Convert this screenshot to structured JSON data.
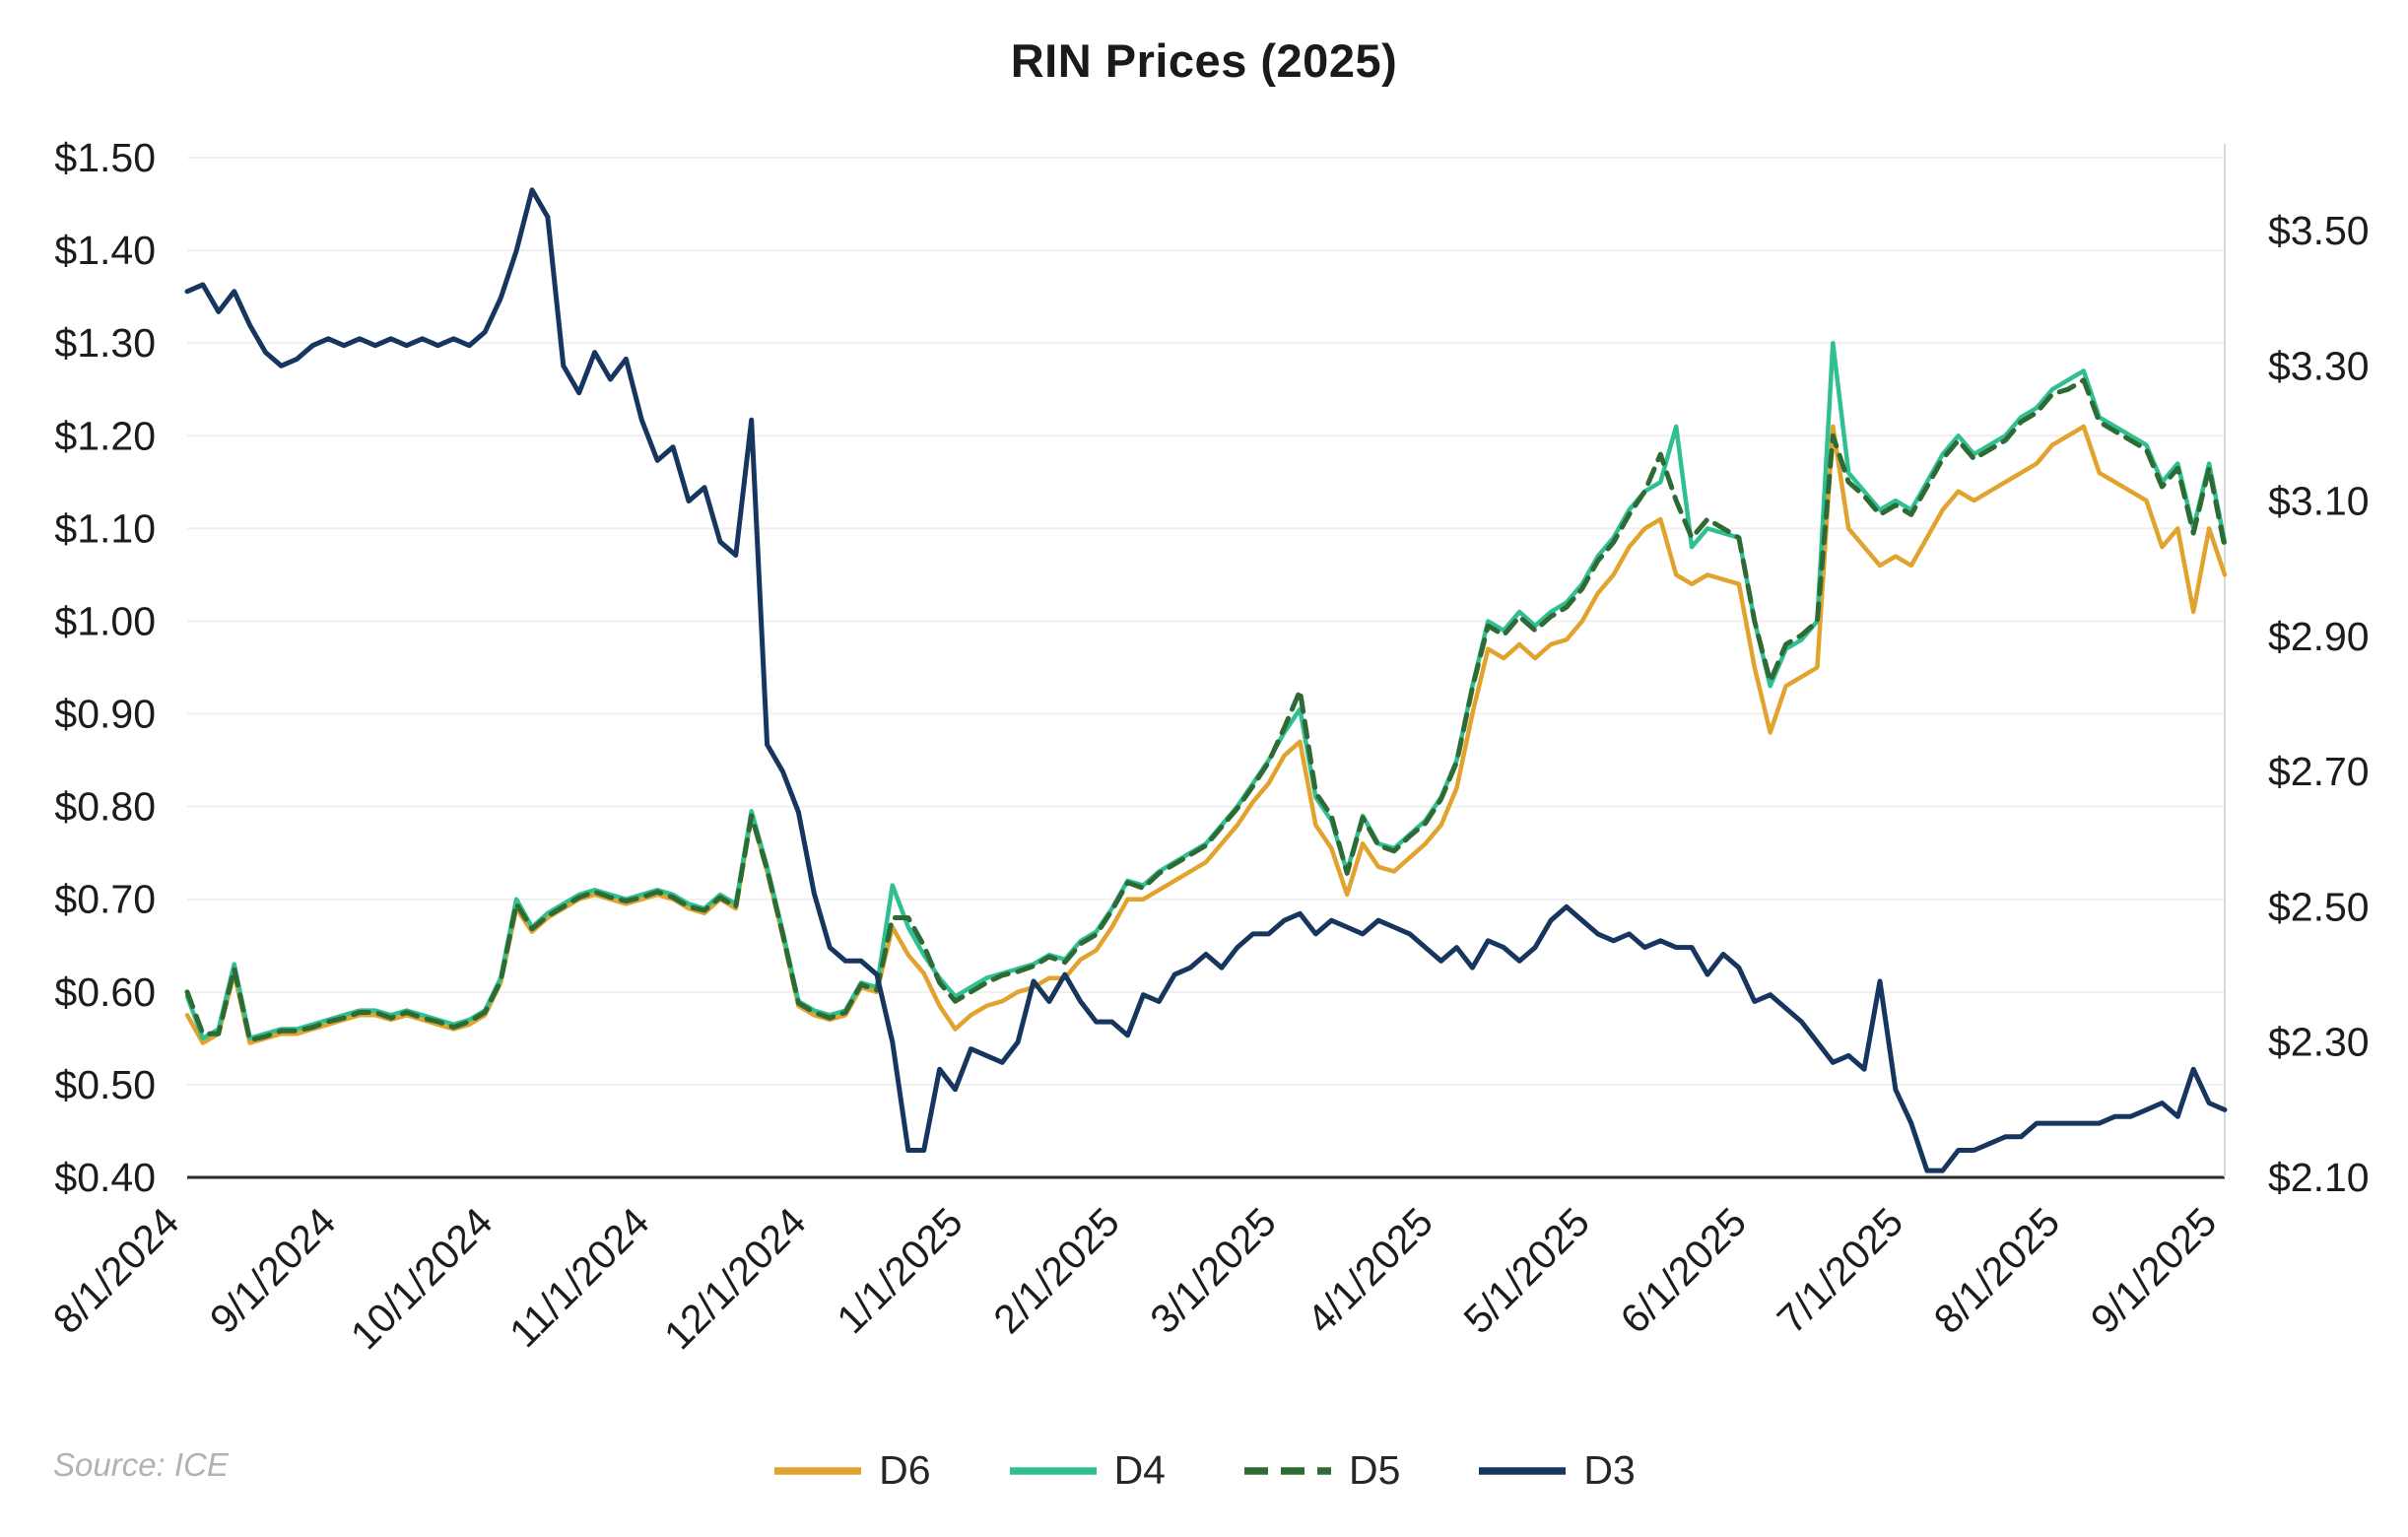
{
  "chart_data": {
    "type": "line",
    "title": "RIN Prices (2025)",
    "source": "Source: ICE",
    "legend_position": "bottom",
    "grid": true,
    "x_unit": "months since 8/1/2024",
    "x_start": 0,
    "x_step": 0.1,
    "x_axis": {
      "min": 0,
      "max": 13,
      "tick_positions": [
        0,
        1,
        2,
        3,
        4,
        5,
        6,
        7,
        8,
        9,
        10,
        11,
        12,
        13
      ],
      "tick_labels": [
        "8/1/2024",
        "9/1/2024",
        "10/1/2024",
        "11/1/2024",
        "12/1/2024",
        "1/1/2025",
        "2/1/2025",
        "3/1/2025",
        "4/1/2025",
        "5/1/2025",
        "6/1/2025",
        "7/1/2025",
        "8/1/2025",
        "9/1/2025"
      ]
    },
    "left_axis": {
      "min": 0.4,
      "max": 1.5,
      "tick_values": [
        0.4,
        0.5,
        0.6,
        0.7,
        0.8,
        0.9,
        1.0,
        1.1,
        1.2,
        1.3,
        1.4,
        1.5
      ],
      "tick_labels": [
        "$0.40",
        "$0.50",
        "$0.60",
        "$0.70",
        "$0.80",
        "$0.90",
        "$1.00",
        "$1.10",
        "$1.20",
        "$1.30",
        "$1.40",
        "$1.50"
      ]
    },
    "right_axis": {
      "min": 2.1,
      "max": 3.5,
      "tick_values": [
        2.1,
        2.3,
        2.5,
        2.7,
        2.9,
        3.1,
        3.3,
        3.5
      ],
      "tick_labels": [
        "$2.10",
        "$2.30",
        "$2.50",
        "$2.70",
        "$2.90",
        "$3.10",
        "$3.30",
        "$3.50"
      ]
    },
    "series": [
      {
        "name": "D6",
        "axis": "left",
        "color": "#E1A32E",
        "dash": null,
        "width": 4.5,
        "values": [
          0.575,
          0.545,
          0.555,
          0.62,
          0.545,
          0.55,
          0.555,
          0.555,
          0.56,
          0.565,
          0.57,
          0.575,
          0.575,
          0.57,
          0.575,
          0.57,
          0.565,
          0.56,
          0.565,
          0.575,
          0.61,
          0.69,
          0.665,
          0.68,
          0.69,
          0.7,
          0.705,
          0.7,
          0.695,
          0.7,
          0.705,
          0.7,
          0.69,
          0.685,
          0.7,
          0.69,
          0.79,
          0.73,
          0.66,
          0.585,
          0.575,
          0.57,
          0.575,
          0.605,
          0.6,
          0.67,
          0.64,
          0.62,
          0.585,
          0.56,
          0.575,
          0.585,
          0.59,
          0.6,
          0.605,
          0.615,
          0.615,
          0.635,
          0.645,
          0.67,
          0.7,
          0.7,
          0.71,
          0.72,
          0.73,
          0.74,
          0.76,
          0.78,
          0.805,
          0.825,
          0.855,
          0.87,
          0.78,
          0.755,
          0.705,
          0.76,
          0.735,
          0.73,
          0.745,
          0.76,
          0.78,
          0.82,
          0.9,
          0.97,
          0.96,
          0.975,
          0.96,
          0.975,
          0.98,
          1.0,
          1.03,
          1.05,
          1.08,
          1.1,
          1.11,
          1.05,
          1.04,
          1.05,
          1.045,
          1.04,
          0.95,
          0.88,
          0.93,
          0.94,
          0.95,
          1.21,
          1.1,
          1.08,
          1.06,
          1.07,
          1.06,
          1.09,
          1.12,
          1.14,
          1.13,
          1.14,
          1.15,
          1.16,
          1.17,
          1.19,
          1.2,
          1.21,
          1.16,
          1.15,
          1.14,
          1.13,
          1.08,
          1.1,
          1.01,
          1.1,
          1.05
        ]
      },
      {
        "name": "D4",
        "axis": "left",
        "color": "#2FBF91",
        "dash": null,
        "width": 4.5,
        "values": [
          0.595,
          0.55,
          0.56,
          0.63,
          0.55,
          0.555,
          0.56,
          0.56,
          0.565,
          0.57,
          0.575,
          0.58,
          0.58,
          0.575,
          0.58,
          0.575,
          0.57,
          0.565,
          0.57,
          0.58,
          0.615,
          0.7,
          0.67,
          0.685,
          0.695,
          0.705,
          0.71,
          0.705,
          0.7,
          0.705,
          0.71,
          0.705,
          0.695,
          0.69,
          0.705,
          0.695,
          0.795,
          0.735,
          0.665,
          0.59,
          0.58,
          0.575,
          0.58,
          0.61,
          0.605,
          0.715,
          0.67,
          0.64,
          0.615,
          0.595,
          0.605,
          0.615,
          0.62,
          0.625,
          0.63,
          0.64,
          0.635,
          0.655,
          0.665,
          0.69,
          0.72,
          0.715,
          0.73,
          0.74,
          0.75,
          0.76,
          0.78,
          0.8,
          0.825,
          0.85,
          0.88,
          0.905,
          0.81,
          0.785,
          0.73,
          0.79,
          0.76,
          0.755,
          0.77,
          0.785,
          0.81,
          0.85,
          0.93,
          1.0,
          0.99,
          1.01,
          0.995,
          1.01,
          1.02,
          1.04,
          1.07,
          1.09,
          1.12,
          1.14,
          1.15,
          1.21,
          1.08,
          1.1,
          1.095,
          1.09,
          1.0,
          0.93,
          0.97,
          0.98,
          1.0,
          1.3,
          1.16,
          1.14,
          1.12,
          1.13,
          1.12,
          1.15,
          1.18,
          1.2,
          1.18,
          1.19,
          1.2,
          1.22,
          1.23,
          1.25,
          1.26,
          1.27,
          1.22,
          1.21,
          1.2,
          1.19,
          1.15,
          1.17,
          1.1,
          1.17,
          1.085
        ]
      },
      {
        "name": "D5",
        "axis": "left",
        "color": "#2E6B34",
        "dash": [
          16,
          10
        ],
        "width": 5,
        "values": [
          0.6,
          0.555,
          0.555,
          0.625,
          0.548,
          0.552,
          0.558,
          0.558,
          0.562,
          0.568,
          0.572,
          0.578,
          0.578,
          0.572,
          0.578,
          0.572,
          0.568,
          0.562,
          0.568,
          0.578,
          0.612,
          0.695,
          0.668,
          0.682,
          0.692,
          0.702,
          0.708,
          0.702,
          0.698,
          0.702,
          0.708,
          0.702,
          0.692,
          0.688,
          0.702,
          0.692,
          0.79,
          0.732,
          0.662,
          0.588,
          0.578,
          0.572,
          0.578,
          0.608,
          0.602,
          0.68,
          0.68,
          0.65,
          0.61,
          0.59,
          0.6,
          0.61,
          0.618,
          0.622,
          0.628,
          0.638,
          0.632,
          0.652,
          0.662,
          0.688,
          0.718,
          0.712,
          0.728,
          0.738,
          0.748,
          0.758,
          0.778,
          0.798,
          0.822,
          0.848,
          0.885,
          0.925,
          0.815,
          0.79,
          0.728,
          0.788,
          0.758,
          0.752,
          0.768,
          0.782,
          0.808,
          0.848,
          0.928,
          0.995,
          0.985,
          1.005,
          0.99,
          1.005,
          1.015,
          1.035,
          1.065,
          1.085,
          1.115,
          1.14,
          1.18,
          1.13,
          1.09,
          1.11,
          1.1,
          1.09,
          1.0,
          0.935,
          0.975,
          0.985,
          1.0,
          1.2,
          1.15,
          1.135,
          1.115,
          1.125,
          1.115,
          1.145,
          1.175,
          1.195,
          1.175,
          1.185,
          1.195,
          1.215,
          1.225,
          1.245,
          1.25,
          1.26,
          1.215,
          1.205,
          1.195,
          1.185,
          1.145,
          1.165,
          1.095,
          1.165,
          1.08
        ]
      },
      {
        "name": "D3",
        "axis": "right",
        "color": "#16365F",
        "dash": null,
        "width": 5,
        "values": [
          3.41,
          3.42,
          3.38,
          3.41,
          3.36,
          3.32,
          3.3,
          3.31,
          3.33,
          3.34,
          3.33,
          3.34,
          3.33,
          3.34,
          3.33,
          3.34,
          3.33,
          3.34,
          3.33,
          3.35,
          3.4,
          3.47,
          3.56,
          3.52,
          3.3,
          3.26,
          3.32,
          3.28,
          3.31,
          3.22,
          3.16,
          3.18,
          3.1,
          3.12,
          3.04,
          3.02,
          3.22,
          2.74,
          2.7,
          2.64,
          2.52,
          2.44,
          2.42,
          2.42,
          2.4,
          2.3,
          2.14,
          2.14,
          2.26,
          2.23,
          2.29,
          2.28,
          2.27,
          2.3,
          2.39,
          2.36,
          2.4,
          2.36,
          2.33,
          2.33,
          2.31,
          2.37,
          2.36,
          2.4,
          2.41,
          2.43,
          2.41,
          2.44,
          2.46,
          2.46,
          2.48,
          2.49,
          2.46,
          2.48,
          2.47,
          2.46,
          2.48,
          2.47,
          2.46,
          2.44,
          2.42,
          2.44,
          2.41,
          2.45,
          2.44,
          2.42,
          2.44,
          2.48,
          2.5,
          2.48,
          2.46,
          2.45,
          2.46,
          2.44,
          2.45,
          2.44,
          2.44,
          2.4,
          2.43,
          2.41,
          2.36,
          2.37,
          2.35,
          2.33,
          2.3,
          2.27,
          2.28,
          2.26,
          2.39,
          2.23,
          2.18,
          2.11,
          2.11,
          2.14,
          2.14,
          2.15,
          2.16,
          2.16,
          2.18,
          2.18,
          2.18,
          2.18,
          2.18,
          2.19,
          2.19,
          2.2,
          2.21,
          2.19,
          2.26,
          2.21,
          2.2
        ]
      }
    ]
  }
}
